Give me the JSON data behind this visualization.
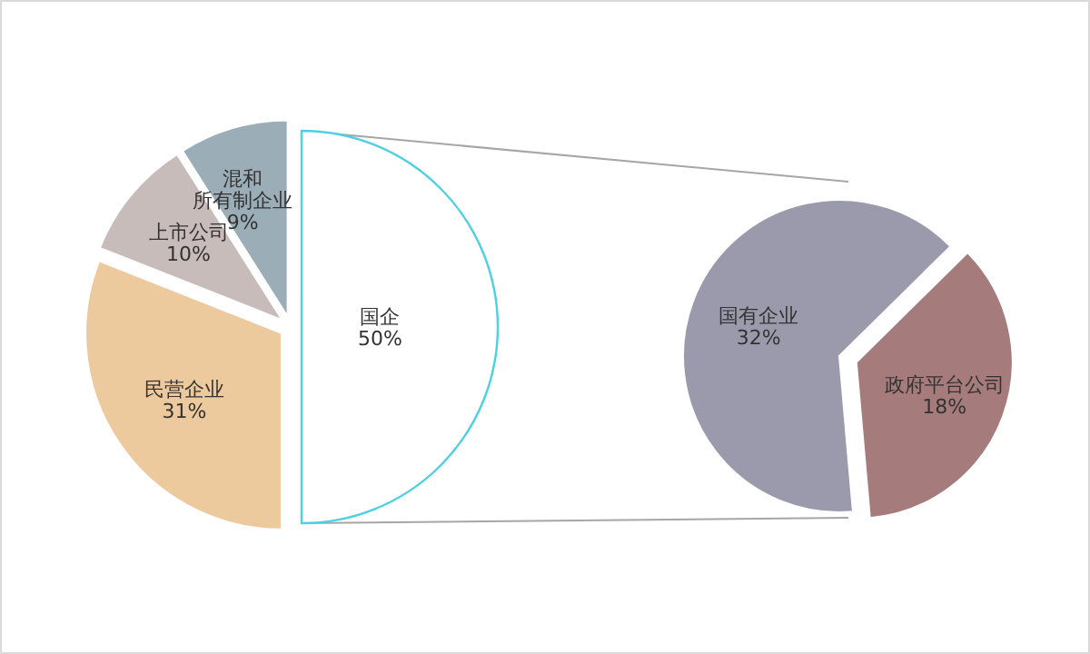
{
  "chart_data": [
    {
      "type": "pie",
      "categories": [
        "国企",
        "民营企业",
        "上市公司",
        "混和所有制企业"
      ],
      "values": [
        50,
        31,
        10,
        9
      ],
      "value_labels": [
        "50%",
        "31%",
        "10%",
        "9%"
      ],
      "colors": [
        "#ffffff",
        "#edca9d",
        "#c8bcbb",
        "#9badb7"
      ]
    },
    {
      "type": "pie",
      "categories": [
        "国有企业",
        "政府平台公司"
      ],
      "values": [
        32,
        18
      ],
      "value_labels": [
        "32%",
        "18%"
      ],
      "colors": [
        "#9a9aac",
        "#a67b7b"
      ]
    }
  ]
}
